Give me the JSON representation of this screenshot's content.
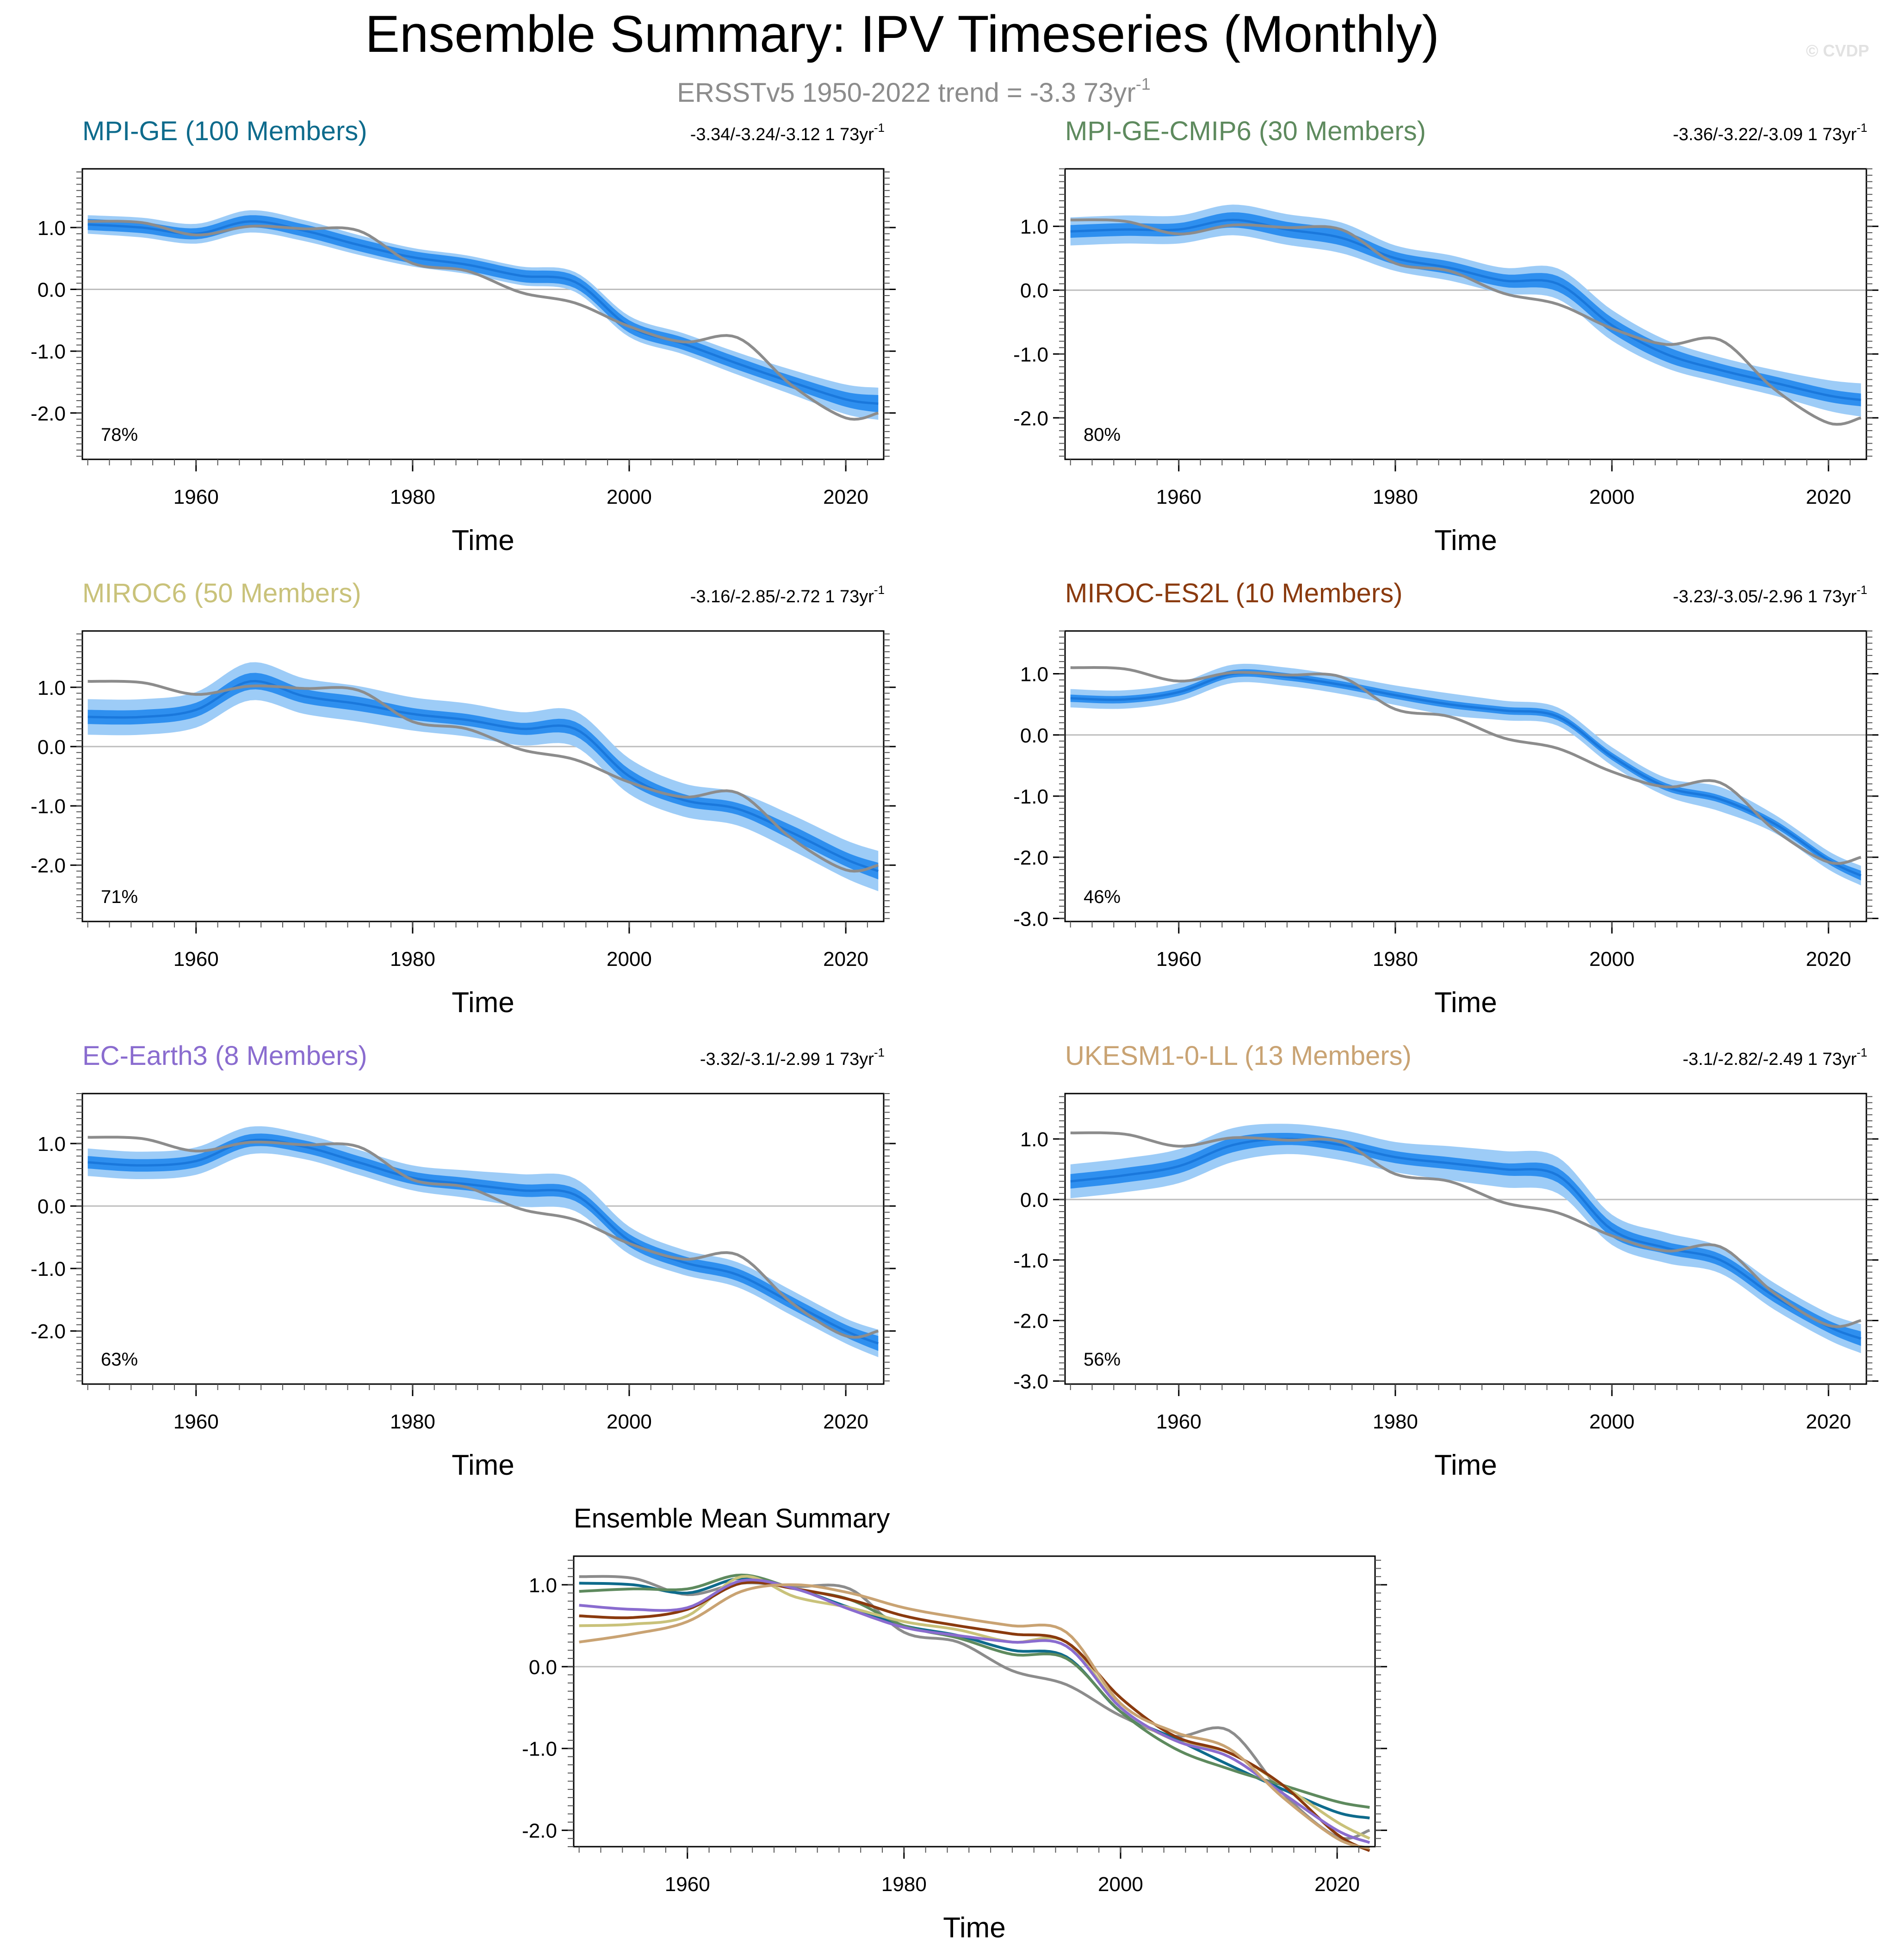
{
  "page": {
    "title": "Ensemble Summary: IPV Timeseries (Monthly)",
    "subtitle": "ERSSTv5 1950-2022 trend = -3.3 73yr",
    "subtitle_sup": "-1",
    "watermark": "© CVDP"
  },
  "colors": {
    "obs": "#8c8c8c",
    "band_outer": "#9dccf7",
    "band_inner": "#2e8fef",
    "mean_line": "#1a78dc",
    "zero_line": "#bdbdbd"
  },
  "chart_data": [
    {
      "type": "line",
      "id": "mpi-ge",
      "title": "MPI-GE (100 Members)",
      "title_color": "#0e6b8c",
      "trend": "-3.34/-3.24/-3.12 1 73yr",
      "trend_sup": "-1",
      "percent": "78%",
      "xlabel": "Time",
      "xlim": [
        1949.5,
        2023.5
      ],
      "xticks": [
        1960,
        1980,
        2000,
        2020
      ],
      "ylim": [
        -2.75,
        1.95
      ],
      "yticks": [
        1.0,
        0.0,
        -1.0,
        -2.0
      ],
      "ytick_labels": [
        "1.0",
        "0.0",
        "-1.0",
        "-2.0"
      ],
      "x": [
        1950,
        1955,
        1960,
        1965,
        1970,
        1975,
        1980,
        1985,
        1990,
        1995,
        2000,
        2005,
        2010,
        2015,
        2020,
        2023
      ],
      "mean": [
        1.05,
        1.0,
        0.9,
        1.1,
        0.95,
        0.72,
        0.52,
        0.4,
        0.22,
        0.12,
        -0.6,
        -0.88,
        -1.2,
        -1.5,
        -1.78,
        -1.85
      ],
      "inner_spread": [
        0.09,
        0.09,
        0.09,
        0.1,
        0.1,
        0.1,
        0.1,
        0.1,
        0.1,
        0.1,
        0.1,
        0.1,
        0.1,
        0.1,
        0.12,
        0.14
      ],
      "outer_spread": [
        0.15,
        0.16,
        0.16,
        0.18,
        0.17,
        0.16,
        0.15,
        0.15,
        0.15,
        0.16,
        0.17,
        0.17,
        0.18,
        0.2,
        0.24,
        0.26
      ],
      "obs": [
        1.1,
        1.08,
        0.88,
        1.02,
        0.98,
        0.95,
        0.42,
        0.3,
        -0.05,
        -0.22,
        -0.6,
        -0.85,
        -0.78,
        -1.55,
        -2.08,
        -2.0
      ]
    },
    {
      "type": "line",
      "id": "mpi-ge-cmip6",
      "title": "MPI-GE-CMIP6 (30 Members)",
      "title_color": "#5e8a5e",
      "trend": "-3.36/-3.22/-3.09 1 73yr",
      "trend_sup": "-1",
      "percent": "80%",
      "xlabel": "Time",
      "xlim": [
        1949.5,
        2023.5
      ],
      "xticks": [
        1960,
        1980,
        2000,
        2020
      ],
      "ylim": [
        -2.65,
        1.9
      ],
      "yticks": [
        1.0,
        0.0,
        -1.0,
        -2.0
      ],
      "ytick_labels": [
        "1.0",
        "0.0",
        "-1.0",
        "-2.0"
      ],
      "x": [
        1950,
        1955,
        1960,
        1965,
        1970,
        1975,
        1980,
        1985,
        1990,
        1995,
        2000,
        2005,
        2010,
        2015,
        2020,
        2023
      ],
      "mean": [
        0.92,
        0.95,
        0.95,
        1.1,
        0.95,
        0.82,
        0.5,
        0.35,
        0.15,
        0.1,
        -0.55,
        -1.0,
        -1.25,
        -1.45,
        -1.65,
        -1.72
      ],
      "inner_spread": [
        0.1,
        0.1,
        0.1,
        0.12,
        0.12,
        0.12,
        0.1,
        0.1,
        0.1,
        0.12,
        0.12,
        0.12,
        0.1,
        0.1,
        0.1,
        0.1
      ],
      "outer_spread": [
        0.22,
        0.22,
        0.22,
        0.24,
        0.24,
        0.24,
        0.2,
        0.2,
        0.2,
        0.24,
        0.24,
        0.22,
        0.2,
        0.2,
        0.24,
        0.26
      ],
      "obs": [
        1.1,
        1.08,
        0.88,
        1.02,
        0.98,
        0.95,
        0.42,
        0.3,
        -0.05,
        -0.22,
        -0.6,
        -0.85,
        -0.78,
        -1.55,
        -2.08,
        -2.0
      ]
    },
    {
      "type": "line",
      "id": "miroc6",
      "title": "MIROC6 (50 Members)",
      "title_color": "#c9c27a",
      "trend": "-3.16/-2.85/-2.72 1 73yr",
      "trend_sup": "-1",
      "percent": "71%",
      "xlabel": "Time",
      "xlim": [
        1949.5,
        2023.5
      ],
      "xticks": [
        1960,
        1980,
        2000,
        2020
      ],
      "ylim": [
        -2.95,
        1.95
      ],
      "yticks": [
        1.0,
        0.0,
        -1.0,
        -2.0
      ],
      "ytick_labels": [
        "1.0",
        "0.0",
        "-1.0",
        "-2.0"
      ],
      "x": [
        1950,
        1955,
        1960,
        1965,
        1970,
        1975,
        1980,
        1985,
        1990,
        1995,
        2000,
        2005,
        2010,
        2015,
        2020,
        2023
      ],
      "mean": [
        0.5,
        0.5,
        0.62,
        1.1,
        0.85,
        0.72,
        0.55,
        0.45,
        0.3,
        0.3,
        -0.5,
        -0.9,
        -1.05,
        -1.45,
        -1.9,
        -2.1
      ],
      "inner_spread": [
        0.12,
        0.12,
        0.12,
        0.14,
        0.12,
        0.12,
        0.1,
        0.1,
        0.1,
        0.12,
        0.12,
        0.1,
        0.1,
        0.12,
        0.12,
        0.14
      ],
      "outer_spread": [
        0.3,
        0.3,
        0.3,
        0.32,
        0.3,
        0.3,
        0.28,
        0.28,
        0.28,
        0.3,
        0.3,
        0.28,
        0.28,
        0.3,
        0.32,
        0.34
      ],
      "obs": [
        1.1,
        1.08,
        0.88,
        1.02,
        0.98,
        0.95,
        0.42,
        0.3,
        -0.05,
        -0.22,
        -0.6,
        -0.85,
        -0.78,
        -1.55,
        -2.08,
        -2.0
      ]
    },
    {
      "type": "line",
      "id": "miroc-es2l",
      "title": "MIROC-ES2L (10 Members)",
      "title_color": "#8a3a0e",
      "trend": "-3.23/-3.05/-2.96 1 73yr",
      "trend_sup": "-1",
      "percent": "46%",
      "xlabel": "Time",
      "xlim": [
        1949.5,
        2023.5
      ],
      "xticks": [
        1960,
        1980,
        2000,
        2020
      ],
      "ylim": [
        -3.05,
        1.7
      ],
      "yticks": [
        1.0,
        0.0,
        -1.0,
        -2.0,
        -3.0
      ],
      "ytick_labels": [
        "1.0",
        "0.0",
        "-1.0",
        "-2.0",
        "-3.0"
      ],
      "x": [
        1950,
        1955,
        1960,
        1965,
        1970,
        1975,
        1980,
        1985,
        1990,
        1995,
        2000,
        2005,
        2010,
        2015,
        2020,
        2023
      ],
      "mean": [
        0.6,
        0.58,
        0.7,
        1.0,
        0.95,
        0.82,
        0.65,
        0.5,
        0.4,
        0.3,
        -0.35,
        -0.85,
        -1.05,
        -1.45,
        -2.05,
        -2.3
      ],
      "inner_spread": [
        0.06,
        0.06,
        0.06,
        0.06,
        0.06,
        0.06,
        0.06,
        0.06,
        0.06,
        0.06,
        0.06,
        0.06,
        0.06,
        0.06,
        0.06,
        0.08
      ],
      "outer_spread": [
        0.15,
        0.15,
        0.15,
        0.15,
        0.15,
        0.15,
        0.16,
        0.18,
        0.16,
        0.15,
        0.15,
        0.15,
        0.2,
        0.15,
        0.15,
        0.16
      ],
      "obs": [
        1.1,
        1.08,
        0.88,
        1.02,
        0.98,
        0.95,
        0.42,
        0.3,
        -0.05,
        -0.22,
        -0.6,
        -0.85,
        -0.78,
        -1.55,
        -2.08,
        -2.0
      ]
    },
    {
      "type": "line",
      "id": "ec-earth3",
      "title": "EC-Earth3 (8 Members)",
      "title_color": "#8a6ccf",
      "trend": "-3.32/-3.1/-2.99 1 73yr",
      "trend_sup": "-1",
      "percent": "63%",
      "xlabel": "Time",
      "xlim": [
        1949.5,
        2023.5
      ],
      "xticks": [
        1960,
        1980,
        2000,
        2020
      ],
      "ylim": [
        -2.85,
        1.8
      ],
      "yticks": [
        1.0,
        0.0,
        -1.0,
        -2.0
      ],
      "ytick_labels": [
        "1.0",
        "0.0",
        "-1.0",
        "-2.0"
      ],
      "x": [
        1950,
        1955,
        1960,
        1965,
        1970,
        1975,
        1980,
        1985,
        1990,
        1995,
        2000,
        2005,
        2010,
        2015,
        2020,
        2023
      ],
      "mean": [
        0.7,
        0.65,
        0.72,
        1.05,
        0.95,
        0.7,
        0.45,
        0.35,
        0.25,
        0.18,
        -0.55,
        -0.9,
        -1.1,
        -1.55,
        -2.0,
        -2.2
      ],
      "inner_spread": [
        0.1,
        0.1,
        0.1,
        0.1,
        0.1,
        0.1,
        0.1,
        0.1,
        0.1,
        0.1,
        0.1,
        0.1,
        0.1,
        0.1,
        0.1,
        0.12
      ],
      "outer_spread": [
        0.22,
        0.22,
        0.22,
        0.22,
        0.2,
        0.2,
        0.2,
        0.22,
        0.26,
        0.26,
        0.22,
        0.2,
        0.2,
        0.2,
        0.2,
        0.22
      ],
      "obs": [
        1.1,
        1.08,
        0.88,
        1.02,
        0.98,
        0.95,
        0.42,
        0.3,
        -0.05,
        -0.22,
        -0.6,
        -0.85,
        -0.78,
        -1.55,
        -2.08,
        -2.0
      ]
    },
    {
      "type": "line",
      "id": "ukesm1-0-ll",
      "title": "UKESM1-0-LL (13 Members)",
      "title_color": "#c9a373",
      "trend": "-3.1/-2.82/-2.49 1 73yr",
      "trend_sup": "-1",
      "percent": "56%",
      "xlabel": "Time",
      "xlim": [
        1949.5,
        2023.5
      ],
      "xticks": [
        1960,
        1980,
        2000,
        2020
      ],
      "ylim": [
        -3.05,
        1.75
      ],
      "yticks": [
        1.0,
        0.0,
        -1.0,
        -2.0,
        -3.0
      ],
      "ytick_labels": [
        "1.0",
        "0.0",
        "-1.0",
        "-2.0",
        "-3.0"
      ],
      "x": [
        1950,
        1955,
        1960,
        1965,
        1970,
        1975,
        1980,
        1985,
        1990,
        1995,
        2000,
        2005,
        2010,
        2015,
        2020,
        2023
      ],
      "mean": [
        0.3,
        0.4,
        0.55,
        0.9,
        1.0,
        0.9,
        0.7,
        0.6,
        0.5,
        0.4,
        -0.5,
        -0.8,
        -1.0,
        -1.6,
        -2.1,
        -2.3
      ],
      "inner_spread": [
        0.12,
        0.12,
        0.12,
        0.12,
        0.1,
        0.1,
        0.1,
        0.1,
        0.1,
        0.12,
        0.12,
        0.1,
        0.1,
        0.1,
        0.1,
        0.12
      ],
      "outer_spread": [
        0.28,
        0.28,
        0.28,
        0.28,
        0.25,
        0.25,
        0.25,
        0.28,
        0.3,
        0.3,
        0.25,
        0.25,
        0.22,
        0.22,
        0.22,
        0.24
      ],
      "obs": [
        1.1,
        1.08,
        0.88,
        1.02,
        0.98,
        0.95,
        0.42,
        0.3,
        -0.05,
        -0.22,
        -0.6,
        -0.85,
        -0.78,
        -1.55,
        -2.08,
        -2.0
      ]
    },
    {
      "type": "line",
      "id": "ensemble-mean",
      "title": "Ensemble Mean Summary",
      "title_color": "#000000",
      "xlabel": "Time",
      "xlim": [
        1949.5,
        2023.5
      ],
      "xticks": [
        1960,
        1980,
        2000,
        2020
      ],
      "ylim": [
        -2.2,
        1.35
      ],
      "yticks": [
        1.0,
        0.0,
        -1.0,
        -2.0
      ],
      "ytick_labels": [
        "1.0",
        "0.0",
        "-1.0",
        "-2.0"
      ],
      "x": [
        1950,
        1955,
        1960,
        1965,
        1970,
        1975,
        1980,
        1985,
        1990,
        1995,
        2000,
        2005,
        2010,
        2015,
        2020,
        2023
      ],
      "series": [
        {
          "name": "ERSSTv5",
          "color": "#8c8c8c",
          "values": [
            1.1,
            1.08,
            0.88,
            1.02,
            0.98,
            0.95,
            0.42,
            0.3,
            -0.05,
            -0.22,
            -0.6,
            -0.85,
            -0.78,
            -1.55,
            -2.08,
            -2.0
          ]
        },
        {
          "name": "MPI-GE",
          "color": "#0e6b8c",
          "values": [
            1.02,
            1.0,
            0.9,
            1.08,
            0.95,
            0.72,
            0.5,
            0.38,
            0.2,
            0.12,
            -0.55,
            -0.88,
            -1.2,
            -1.5,
            -1.78,
            -1.85
          ]
        },
        {
          "name": "MPI-GE-CMIP6",
          "color": "#5e8a5e",
          "values": [
            0.92,
            0.95,
            0.95,
            1.12,
            0.95,
            0.82,
            0.5,
            0.35,
            0.15,
            0.1,
            -0.55,
            -1.0,
            -1.25,
            -1.45,
            -1.65,
            -1.72
          ]
        },
        {
          "name": "MIROC6",
          "color": "#c9c27a",
          "values": [
            0.5,
            0.52,
            0.62,
            1.1,
            0.85,
            0.72,
            0.55,
            0.45,
            0.3,
            0.3,
            -0.5,
            -0.9,
            -1.05,
            -1.45,
            -1.9,
            -2.1
          ]
        },
        {
          "name": "MIROC-ES2L",
          "color": "#8a3a0e",
          "values": [
            0.62,
            0.6,
            0.7,
            1.02,
            0.95,
            0.82,
            0.62,
            0.5,
            0.4,
            0.3,
            -0.38,
            -0.85,
            -1.05,
            -1.45,
            -2.05,
            -2.25
          ]
        },
        {
          "name": "EC-Earth3",
          "color": "#8a6ccf",
          "values": [
            0.75,
            0.7,
            0.72,
            1.05,
            0.95,
            0.7,
            0.48,
            0.38,
            0.3,
            0.25,
            -0.5,
            -0.9,
            -1.1,
            -1.55,
            -2.0,
            -2.15
          ]
        },
        {
          "name": "UKESM1-0-LL",
          "color": "#c9a373",
          "values": [
            0.3,
            0.4,
            0.55,
            0.92,
            1.0,
            0.9,
            0.72,
            0.6,
            0.5,
            0.42,
            -0.45,
            -0.8,
            -1.0,
            -1.6,
            -2.1,
            -2.22
          ]
        }
      ]
    }
  ]
}
